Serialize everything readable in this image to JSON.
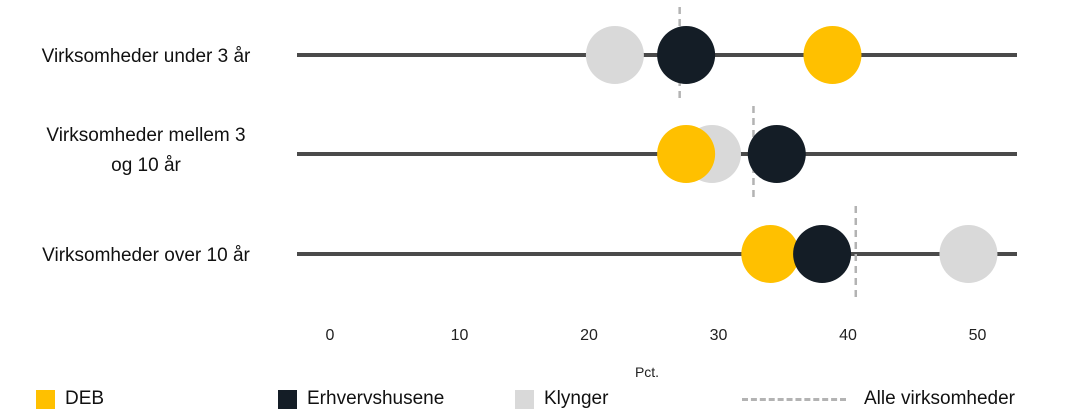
{
  "chart_data": {
    "type": "dot",
    "categories": [
      [
        "Virksomheder under 3 år"
      ],
      [
        "Virksomheder mellem 3",
        "og 10 år"
      ],
      [
        "Virksomheder over 10 år"
      ]
    ],
    "series": [
      {
        "name": "Klynger",
        "color": "#d9d9d9",
        "values": [
          22,
          29.5,
          49.3
        ]
      },
      {
        "name": "DEB",
        "color": "#ffc000",
        "values": [
          38.8,
          27.5,
          34
        ]
      },
      {
        "name": "Erhvervshusene",
        "color": "#141d26",
        "values": [
          27.5,
          34.5,
          38
        ]
      }
    ],
    "reference": {
      "name": "Alle virksomheder",
      "values": [
        27,
        32.7,
        40.6
      ]
    },
    "xlim": [
      0,
      53
    ],
    "xticks": [
      "0",
      "10",
      "20",
      "30",
      "40",
      "50"
    ],
    "xlabel": "Pct.",
    "legend_position": "bottom"
  },
  "colors": {
    "line": "#4a4a4a",
    "reference": "#b3b3b3"
  },
  "legend": {
    "items": [
      {
        "label": "DEB",
        "color": "#ffc000"
      },
      {
        "label": "Erhvervshusene",
        "color": "#141d26"
      },
      {
        "label": "Klynger",
        "color": "#d9d9d9"
      }
    ],
    "reference_label": "Alle virksomheder"
  }
}
